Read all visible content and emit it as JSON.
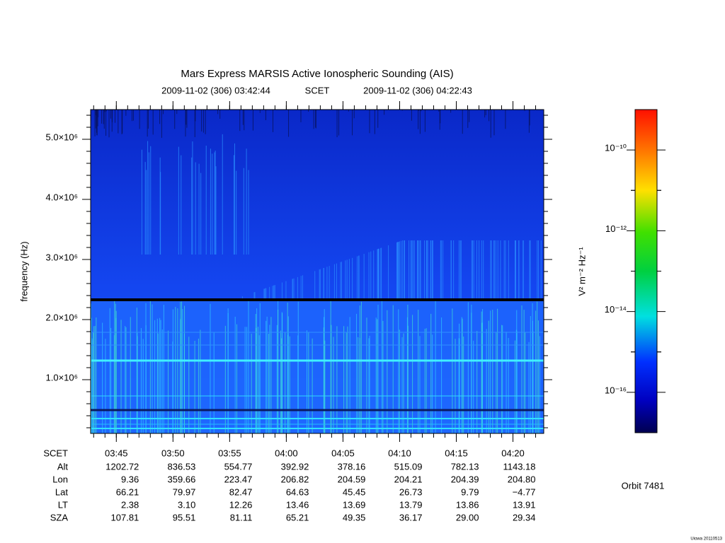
{
  "chart_data": {
    "type": "spectrogram",
    "title": "Mars Express MARSIS Active Ionospheric Sounding (AIS)",
    "subtitle_start": "2009-11-02 (306) 03:42:44",
    "subtitle_mid": "SCET",
    "subtitle_end": "2009-11-02 (306) 04:22:43",
    "ylabel": "frequency (Hz)",
    "xlim": [
      222.733,
      262.717
    ],
    "xticks": [
      {
        "value": 225,
        "label": "03:45"
      },
      {
        "value": 230,
        "label": "03:50"
      },
      {
        "value": 235,
        "label": "03:55"
      },
      {
        "value": 240,
        "label": "04:00"
      },
      {
        "value": 245,
        "label": "04:05"
      },
      {
        "value": 250,
        "label": "04:10"
      },
      {
        "value": 255,
        "label": "04:15"
      },
      {
        "value": 260,
        "label": "04:20"
      }
    ],
    "ylim": [
      106000,
      5494000
    ],
    "yticks": [
      {
        "value": 1000000,
        "label": "1.0×10⁶"
      },
      {
        "value": 2000000,
        "label": "2.0×10⁶"
      },
      {
        "value": 3000000,
        "label": "3.0×10⁶"
      },
      {
        "value": 4000000,
        "label": "4.0×10⁶"
      },
      {
        "value": 5000000,
        "label": "5.0×10⁶"
      }
    ],
    "colorbar": {
      "label": "V² m⁻² Hz⁻¹",
      "log_scale": true,
      "clim": [
        1e-17,
        1e-09
      ],
      "ticks": [
        {
          "value": 1e-16,
          "label": "10⁻¹⁶"
        },
        {
          "value": 1e-14,
          "label": "10⁻¹⁴"
        },
        {
          "value": 1e-12,
          "label": "10⁻¹²"
        },
        {
          "value": 1e-10,
          "label": "10⁻¹⁰"
        }
      ]
    },
    "ephemeris": {
      "time_label": "SCET",
      "rows": [
        {
          "label": "Alt",
          "values": [
            "1202.72",
            "836.53",
            "554.77",
            "392.92",
            "378.16",
            "515.09",
            "782.13",
            "1143.18"
          ]
        },
        {
          "label": "Lon",
          "values": [
            "9.36",
            "359.66",
            "223.47",
            "206.82",
            "204.59",
            "204.21",
            "204.39",
            "204.80"
          ]
        },
        {
          "label": "Lat",
          "values": [
            "66.21",
            "79.97",
            "82.47",
            "64.63",
            "45.45",
            "26.73",
            "9.79",
            "−4.77"
          ]
        },
        {
          "label": "LT",
          "values": [
            "2.38",
            "3.10",
            "12.26",
            "13.46",
            "13.69",
            "13.79",
            "13.86",
            "13.91"
          ]
        },
        {
          "label": "SZA",
          "values": [
            "107.81",
            "95.51",
            "81.11",
            "65.21",
            "49.35",
            "36.17",
            "29.00",
            "29.34"
          ]
        }
      ]
    },
    "orbit": "Orbit 7481",
    "footer": "Uiowa 20110513"
  }
}
